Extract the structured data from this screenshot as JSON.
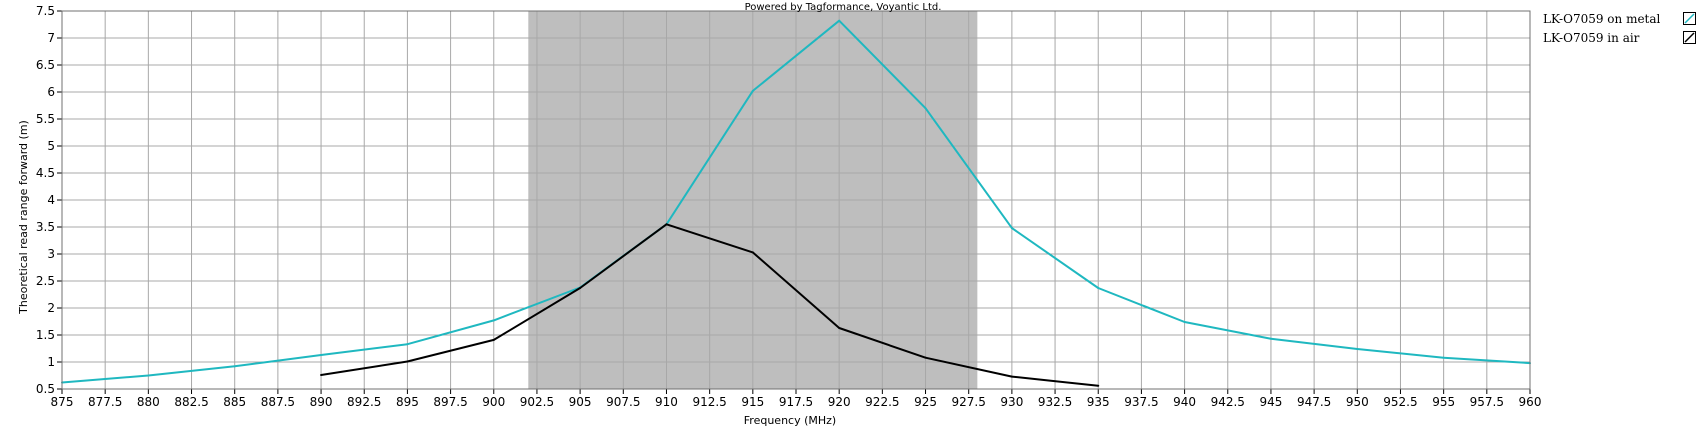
{
  "chart_data": {
    "type": "line",
    "credit": "Powered by Tagformance, Voyantic Ltd.",
    "xlabel": "Frequency (MHz)",
    "ylabel": "Theoretical read range forward (m)",
    "xlim": [
      875,
      960
    ],
    "ylim": [
      0.5,
      7.5
    ],
    "x_ticks": [
      "875",
      "877.5",
      "880",
      "882.5",
      "885",
      "887.5",
      "890",
      "892.5",
      "895",
      "897.5",
      "900",
      "902.5",
      "905",
      "907.5",
      "910",
      "912.5",
      "915",
      "917.5",
      "920",
      "922.5",
      "925",
      "927.5",
      "930",
      "932.5",
      "935",
      "937.5",
      "940",
      "942.5",
      "945",
      "947.5",
      "950",
      "952.5",
      "955",
      "957.5",
      "960"
    ],
    "y_ticks": [
      "0.5",
      "1",
      "1.5",
      "2",
      "2.5",
      "3",
      "3.5",
      "4",
      "4.5",
      "5",
      "5.5",
      "6",
      "6.5",
      "7",
      "7.5"
    ],
    "grid": true,
    "highlight_band": {
      "x_start": 902,
      "x_end": 928,
      "color": "#bebebe"
    },
    "legend_position": "right",
    "series": [
      {
        "name": "LK-O7059 on metal",
        "color": "#1fb8c0",
        "x": [
          875,
          880,
          885,
          890,
          895,
          900,
          905,
          910,
          915,
          920,
          925,
          930,
          935,
          940,
          945,
          950,
          955,
          960
        ],
        "y": [
          0.62,
          0.75,
          0.92,
          1.13,
          1.33,
          1.77,
          2.38,
          3.55,
          6.02,
          7.32,
          5.7,
          3.48,
          2.37,
          1.74,
          1.43,
          1.24,
          1.08,
          0.98
        ]
      },
      {
        "name": "LK-O7059 in air",
        "color": "#000000",
        "x": [
          890,
          895,
          900,
          905,
          910,
          915,
          920,
          925,
          930,
          935
        ],
        "y": [
          0.76,
          1.01,
          1.41,
          2.37,
          3.55,
          3.03,
          1.63,
          1.08,
          0.73,
          0.56
        ]
      }
    ]
  }
}
